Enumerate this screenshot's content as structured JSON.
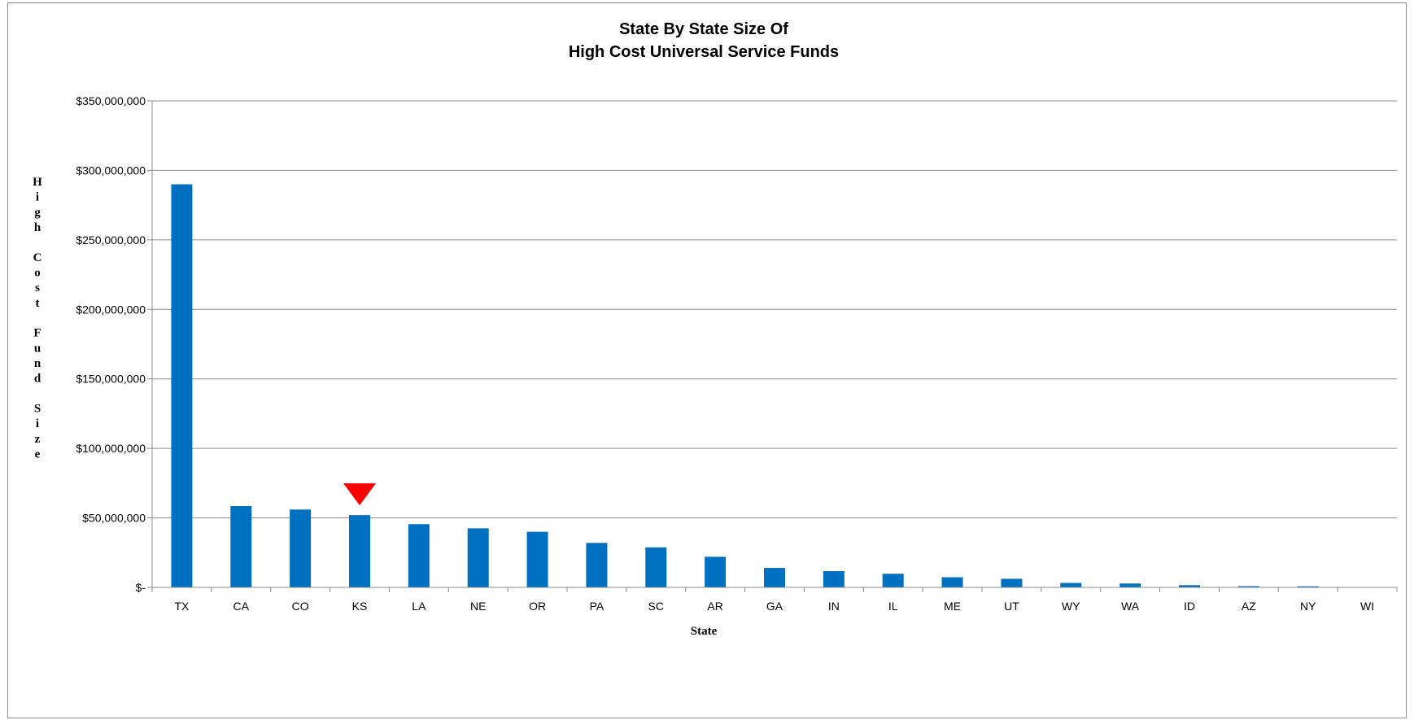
{
  "chart_data": {
    "type": "bar",
    "title_lines": [
      "State By State Size Of",
      "High Cost Universal Service Funds"
    ],
    "xlabel": "State",
    "ylabel": "High Cost Fund Size",
    "ylim": [
      0,
      350000000
    ],
    "y_ticks": [
      {
        "value": 0,
        "label": "$-"
      },
      {
        "value": 50000000,
        "label": "$50,000,000"
      },
      {
        "value": 100000000,
        "label": "$100,000,000"
      },
      {
        "value": 150000000,
        "label": "$150,000,000"
      },
      {
        "value": 200000000,
        "label": "$200,000,000"
      },
      {
        "value": 250000000,
        "label": "$250,000,000"
      },
      {
        "value": 300000000,
        "label": "$300,000,000"
      },
      {
        "value": 350000000,
        "label": "$350,000,000"
      }
    ],
    "grid": true,
    "legend": "none",
    "bar_color": "#0070c0",
    "marker_color": "#ff0000",
    "highlight_category": "KS",
    "categories": [
      "TX",
      "CA",
      "CO",
      "KS",
      "LA",
      "NE",
      "OR",
      "PA",
      "SC",
      "AR",
      "GA",
      "IN",
      "IL",
      "ME",
      "UT",
      "WY",
      "WA",
      "ID",
      "AZ",
      "NY",
      "WI"
    ],
    "values": [
      290000000,
      58500000,
      56000000,
      52000000,
      45500000,
      42500000,
      40000000,
      32000000,
      28800000,
      22000000,
      14000000,
      11700000,
      9800000,
      7300000,
      6200000,
      3200000,
      2800000,
      1600000,
      900000,
      800000,
      100000
    ]
  }
}
